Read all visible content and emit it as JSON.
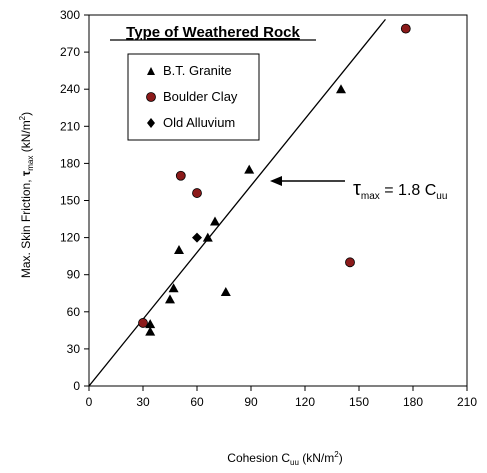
{
  "chart_data": {
    "type": "scatter",
    "title": "Type of Weathered Rock",
    "xlabel": "Cohesion C",
    "xlabel_sub": "uu",
    "xlabel_unit": " (kN/m",
    "xlabel_unit_sup": "2",
    "xlabel_unit_end": ")",
    "ylabel": "Max. Skin Friction, ",
    "ylabel_symbol": "τ",
    "ylabel_sub": "max",
    "ylabel_unit": " (kN/m",
    "ylabel_unit_sup": "2",
    "ylabel_unit_end": ")",
    "xlim": [
      0,
      210
    ],
    "ylim": [
      0,
      300
    ],
    "xticks": [
      0,
      30,
      60,
      90,
      120,
      150,
      180,
      210
    ],
    "yticks": [
      0,
      30,
      60,
      90,
      120,
      150,
      180,
      210,
      240,
      270,
      300
    ],
    "grid": false,
    "legend_position": "top-left",
    "series": [
      {
        "name": "B.T. Granite",
        "marker": "triangle",
        "color": "#000000",
        "points": [
          [
            34,
            44
          ],
          [
            34,
            50
          ],
          [
            45,
            70
          ],
          [
            47,
            79
          ],
          [
            50,
            110
          ],
          [
            66,
            120
          ],
          [
            70,
            133
          ],
          [
            76,
            76
          ],
          [
            89,
            175
          ],
          [
            140,
            240
          ]
        ]
      },
      {
        "name": "Boulder Clay",
        "marker": "circle",
        "color": "#8b1a1a",
        "points": [
          [
            30,
            51
          ],
          [
            51,
            170
          ],
          [
            60,
            156
          ],
          [
            145,
            100
          ],
          [
            176,
            289
          ]
        ]
      },
      {
        "name": "Old Alluvium",
        "marker": "diamond",
        "color": "#000000",
        "points": [
          [
            60,
            120
          ]
        ]
      }
    ],
    "fit_line": {
      "slope": 1.8,
      "x_range": [
        0,
        164.7
      ],
      "annotation": {
        "symbol": "τ",
        "sub": "max",
        "text": " = 1.8 C",
        "sub2": "uu",
        "arrow_target": [
          89,
          160
        ]
      }
    }
  }
}
